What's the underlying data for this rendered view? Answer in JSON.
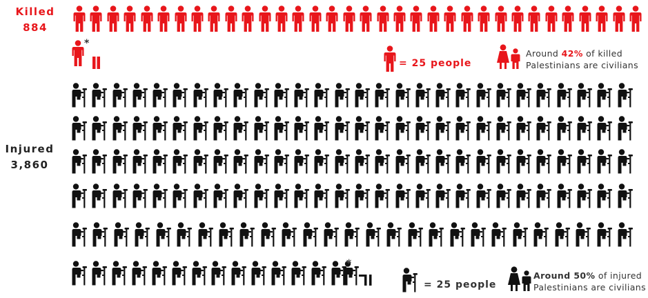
{
  "killed": {
    "label": "Killed",
    "count": "884",
    "icons_full": 35,
    "partial_fraction": 0.36,
    "legend_text": "= 25 people",
    "note_prefix": "Around",
    "note_percent": "42%",
    "note_suffix": "of killed",
    "note_line2": "Palestinians are civilians",
    "asterisk": "*",
    "color": "#e8161b",
    "icon": "person-icon",
    "family_icon": "family-icon"
  },
  "injured": {
    "label": "Injured",
    "count": "3,860",
    "icons_full": 154,
    "partial_fraction": 0.4,
    "legend_text": "= 25 people",
    "note_bold": "Around 50%",
    "note_suffix": "of injured",
    "note_line2": "Palestinians are civilians",
    "asterisk": "*",
    "color": "#111111",
    "icon": "person-on-crutches-icon",
    "family_icon": "family-icon"
  }
}
